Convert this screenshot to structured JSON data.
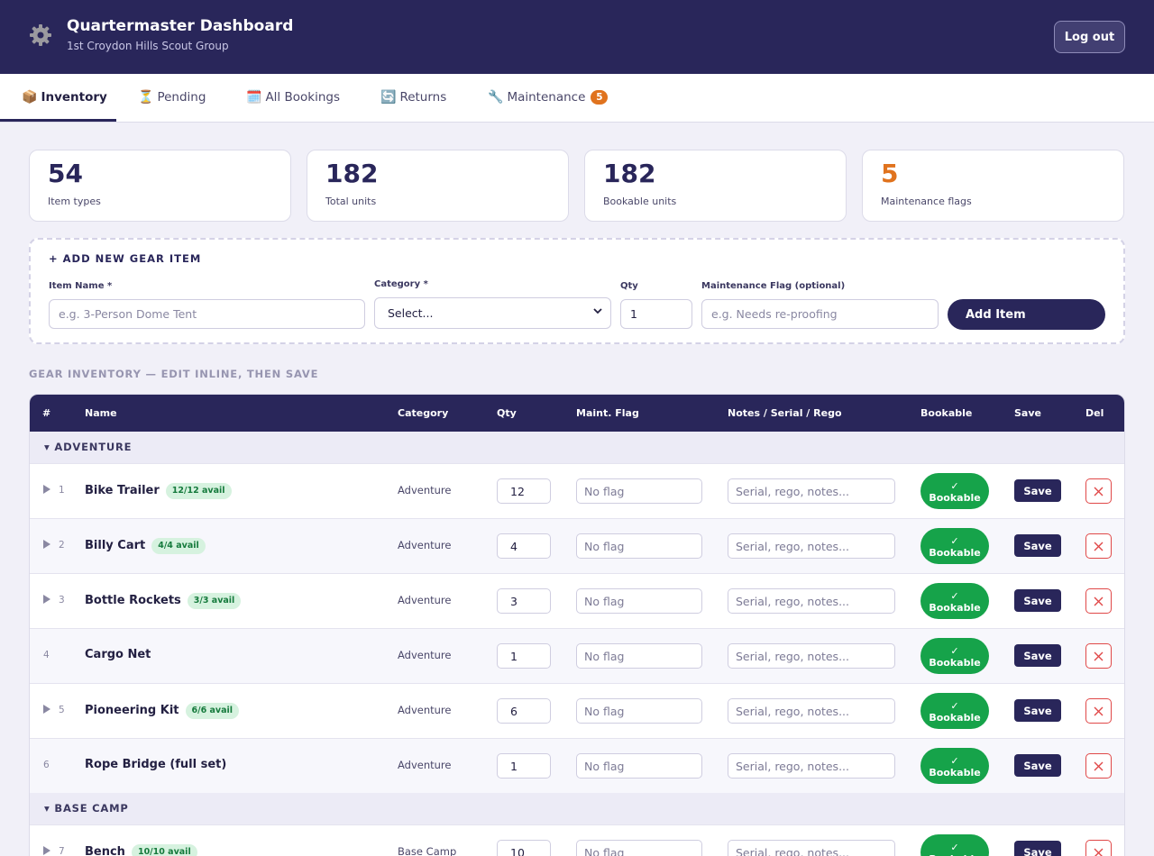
{
  "header": {
    "title": "Quartermaster Dashboard",
    "subtitle": "1st Croydon Hills Scout Group",
    "logout_label": "Log out"
  },
  "tabs": [
    {
      "icon": "📦",
      "label": "Inventory",
      "active": true
    },
    {
      "icon": "⏳",
      "label": "Pending"
    },
    {
      "icon": "🗓️",
      "label": "All Bookings"
    },
    {
      "icon": "🔄",
      "label": "Returns"
    },
    {
      "icon": "🔧",
      "label": "Maintenance",
      "badge": "5"
    }
  ],
  "stats": [
    {
      "value": "54",
      "label": "Item types"
    },
    {
      "value": "182",
      "label": "Total units"
    },
    {
      "value": "182",
      "label": "Bookable units"
    },
    {
      "value": "5",
      "label": "Maintenance flags",
      "color": "#e0731e"
    }
  ],
  "add_form": {
    "title": "+ ADD NEW GEAR ITEM",
    "name_label": "Item Name *",
    "name_placeholder": "e.g. 3-Person Dome Tent",
    "category_label": "Category *",
    "category_value": "Select...",
    "qty_label": "Qty",
    "qty_value": "1",
    "flag_label": "Maintenance Flag (optional)",
    "flag_placeholder": "e.g. Needs re-proofing",
    "submit_label": "Add Item"
  },
  "section_title": "GEAR INVENTORY — EDIT INLINE, THEN SAVE",
  "table": {
    "headers": {
      "num": "#",
      "name": "Name",
      "category": "Category",
      "qty": "Qty",
      "flag": "Maint. Flag",
      "notes": "Notes / Serial / Rego",
      "bookable": "Bookable",
      "save": "Save",
      "del": "Del"
    },
    "groups": [
      {
        "label": "▾ ADVENTURE"
      },
      {
        "label": "▾ BASE CAMP"
      }
    ],
    "rows": [
      {
        "num": "1",
        "name": "Bike Trailer",
        "avail": "12/12 avail",
        "category": "Adventure",
        "qty": "12",
        "flag_placeholder": "No flag",
        "notes_placeholder": "Serial, rego, notes...",
        "bookable_check": "✓",
        "bookable_label": "Bookable",
        "save_label": "Save"
      },
      {
        "num": "2",
        "name": "Billy Cart",
        "avail": "4/4 avail",
        "category": "Adventure",
        "qty": "4",
        "flag_placeholder": "No flag",
        "notes_placeholder": "Serial, rego, notes...",
        "bookable_check": "✓",
        "bookable_label": "Bookable",
        "save_label": "Save"
      },
      {
        "num": "3",
        "name": "Bottle Rockets",
        "avail": "3/3 avail",
        "category": "Adventure",
        "qty": "3",
        "flag_placeholder": "No flag",
        "notes_placeholder": "Serial, rego, notes...",
        "bookable_check": "✓",
        "bookable_label": "Bookable",
        "save_label": "Save"
      },
      {
        "num": "4",
        "name": "Cargo Net",
        "avail": "",
        "category": "Adventure",
        "qty": "1",
        "flag_placeholder": "No flag",
        "notes_placeholder": "Serial, rego, notes...",
        "bookable_check": "✓",
        "bookable_label": "Bookable",
        "save_label": "Save"
      },
      {
        "num": "5",
        "name": "Pioneering Kit",
        "avail": "6/6 avail",
        "category": "Adventure",
        "qty": "6",
        "flag_placeholder": "No flag",
        "notes_placeholder": "Serial, rego, notes...",
        "bookable_check": "✓",
        "bookable_label": "Bookable",
        "save_label": "Save"
      },
      {
        "num": "6",
        "name": "Rope Bridge (full set)",
        "avail": "",
        "category": "Adventure",
        "qty": "1",
        "flag_placeholder": "No flag",
        "notes_placeholder": "Serial, rego, notes...",
        "bookable_check": "✓",
        "bookable_label": "Bookable",
        "save_label": "Save"
      },
      {
        "num": "7",
        "name": "Bench",
        "avail": "10/10 avail",
        "category": "Base Camp",
        "qty": "10",
        "flag_placeholder": "No flag",
        "notes_placeholder": "Serial, rego, notes...",
        "bookable_check": "✓",
        "bookable_label": "Bookable",
        "save_label": "Save"
      }
    ]
  },
  "icons": {
    "logo": "gear-icon",
    "expander": "triangle-right-icon",
    "delete": "close-icon",
    "select": "chevron-down-icon"
  },
  "colors": {
    "primary": "#29265a",
    "accent_orange": "#e0731e",
    "bookable_green": "#16a34a",
    "avail_badge_bg": "#d6f2df",
    "danger": "#e04848"
  }
}
